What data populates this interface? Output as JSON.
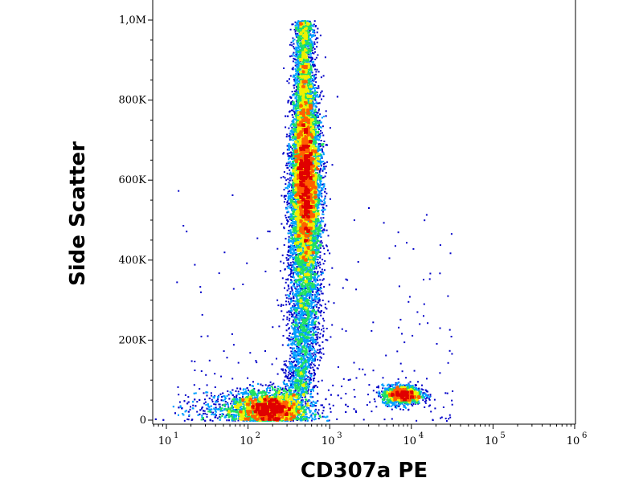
{
  "chart_data": {
    "type": "scatter",
    "plot_style": "density dot plot (flow cytometry)",
    "xlabel": "CD307a PE",
    "ylabel": "Side Scatter",
    "x_scale": "log",
    "xlim": [
      10,
      1000000
    ],
    "ylim": [
      0,
      1050000
    ],
    "x_ticks": [
      {
        "base": "10",
        "exp": "1",
        "value": 10
      },
      {
        "base": "10",
        "exp": "2",
        "value": 100
      },
      {
        "base": "10",
        "exp": "3",
        "value": 1000
      },
      {
        "base": "10",
        "exp": "4",
        "value": 10000
      },
      {
        "base": "10",
        "exp": "5",
        "value": 100000
      },
      {
        "base": "10",
        "exp": "6",
        "value": 1000000
      }
    ],
    "y_ticks": [
      {
        "label": "0",
        "value": 0
      },
      {
        "label": "200K",
        "value": 200000
      },
      {
        "label": "400K",
        "value": 400000
      },
      {
        "label": "600K",
        "value": 600000
      },
      {
        "label": "800K",
        "value": 800000
      },
      {
        "label": "1,0M",
        "value": 1000000
      }
    ],
    "populations": [
      {
        "center_x": 180,
        "center_y": 35000,
        "density": "highest"
      },
      {
        "center_x": 500,
        "center_y": 600000,
        "density": "high"
      },
      {
        "center_x": 8000,
        "center_y": 65000,
        "density": "medium"
      }
    ],
    "colors": {
      "low": "#0000c8",
      "mid_low": "#00a0ff",
      "mid": "#20e060",
      "mid_high": "#f0f000",
      "high": "#ff6000",
      "highest": "#e00000"
    }
  }
}
